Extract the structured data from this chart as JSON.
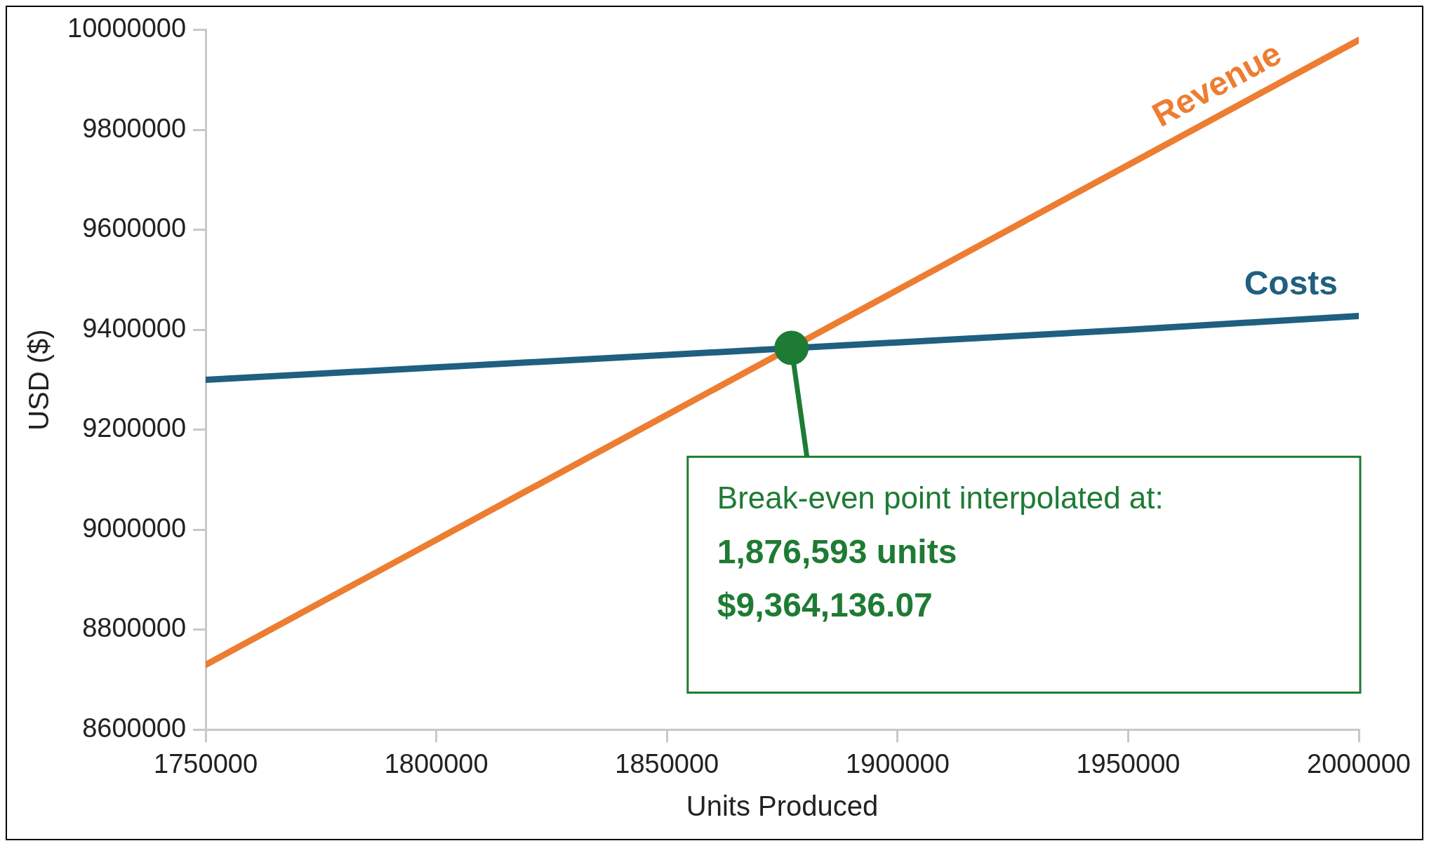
{
  "chart_data": {
    "type": "line",
    "xlabel": "Units Produced",
    "ylabel": "USD ($)",
    "xlim": [
      1750000,
      2000000
    ],
    "xticks": [
      1750000,
      1800000,
      1850000,
      1900000,
      1950000,
      2000000
    ],
    "ylim": [
      8600000,
      10000000
    ],
    "yticks": [
      8600000,
      8800000,
      9000000,
      9200000,
      9400000,
      9600000,
      9800000,
      10000000
    ],
    "grid": false,
    "legend": false,
    "line_style": "solid",
    "series": [
      {
        "name": "Revenue",
        "color": "#ed7d31",
        "x": [
          1750000,
          1800000,
          1850000,
          1900000,
          1950000,
          2000000
        ],
        "values": [
          8730000,
          8980000,
          9230000,
          9480000,
          9730000,
          9980000
        ]
      },
      {
        "name": "Costs",
        "color": "#1f5f80",
        "x": [
          1750000,
          1800000,
          1850000,
          1900000,
          1950000,
          2000000
        ],
        "values": [
          9300000,
          9325000,
          9350000,
          9375000,
          9400000,
          9428000
        ]
      },
      {
        "type": "scatter",
        "color": "#1e7b34",
        "x": [
          1877000
        ],
        "values": [
          9364000
        ]
      }
    ],
    "annotations": [
      {
        "text": "Break-even point interpolated at:\n1,876,593 units\n$9,364,136.07",
        "x": 1877000,
        "y": 9364000
      }
    ]
  }
}
